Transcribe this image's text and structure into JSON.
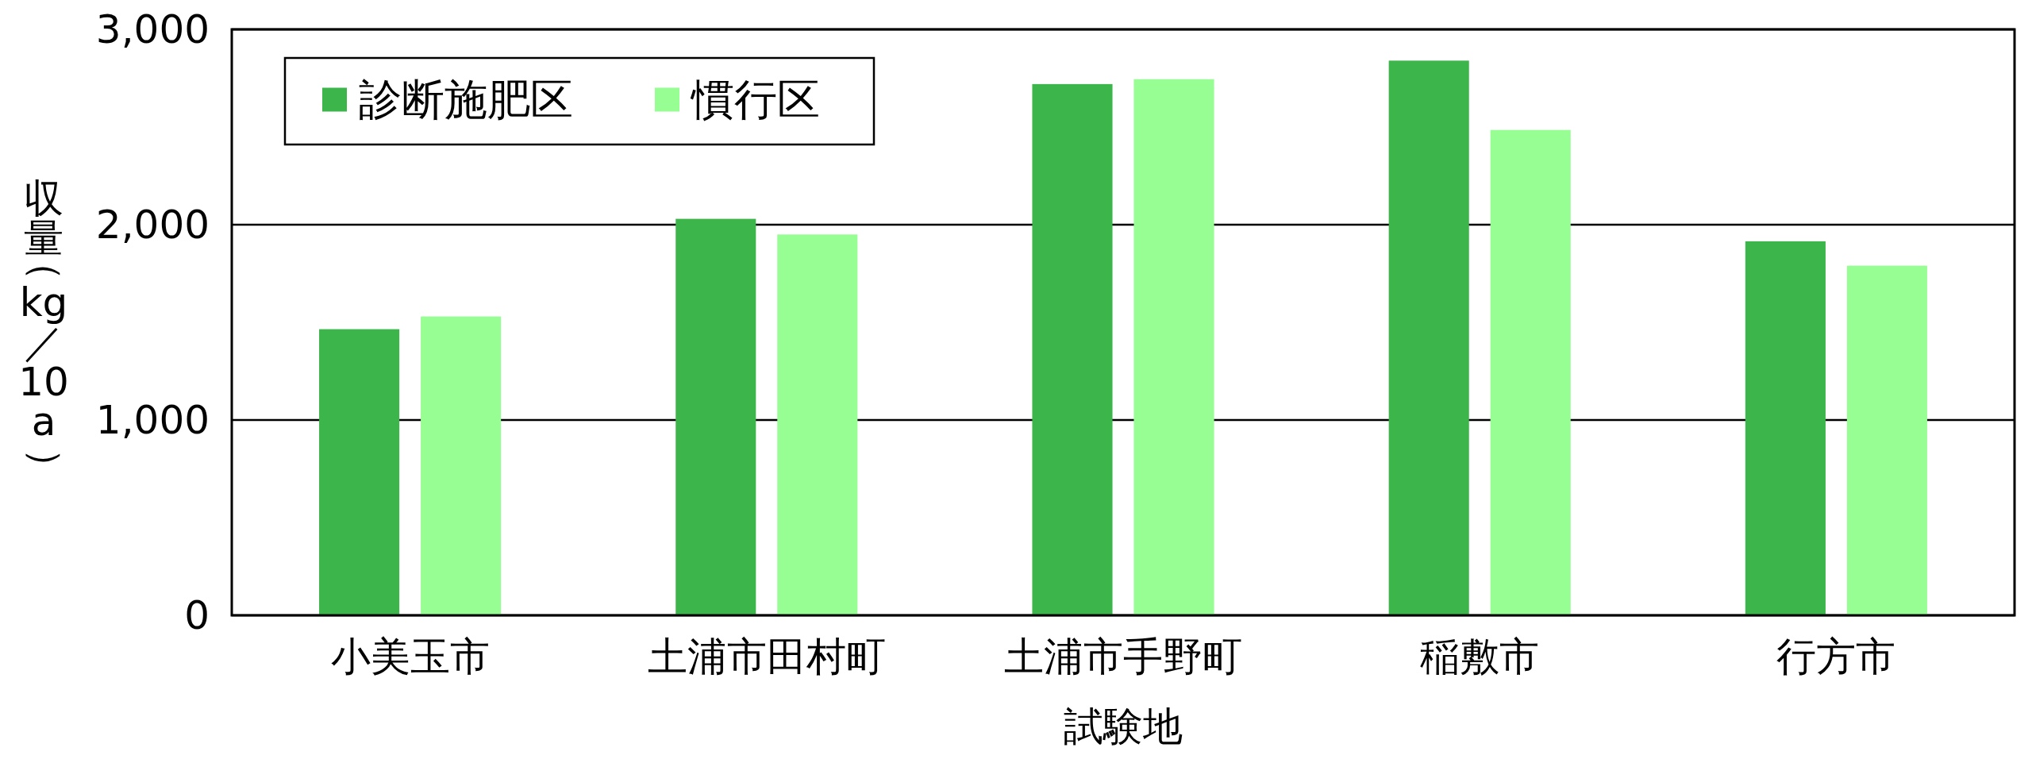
{
  "chart_data": {
    "type": "bar",
    "xlabel": "試験地",
    "ylabel": "収量（kg／10a）",
    "categories": [
      "小美玉市",
      "土浦市田村町",
      "土浦市手野町",
      "稲敷市",
      "行方市"
    ],
    "series": [
      {
        "name": "診断施肥区",
        "color": "#3cb54a",
        "values": [
          1465,
          2030,
          2720,
          2840,
          1915
        ]
      },
      {
        "name": "慣行区",
        "color": "#96fe93",
        "values": [
          1530,
          1950,
          2745,
          2485,
          1790
        ]
      }
    ],
    "ylim": [
      0,
      3000
    ],
    "yticks": [
      0,
      {
        "value": 1000,
        "label": "1,000"
      },
      {
        "value": 2000,
        "label": "2,000"
      },
      {
        "value": 3000,
        "label": "3,000"
      }
    ],
    "grid": "y",
    "legend": "top left"
  }
}
